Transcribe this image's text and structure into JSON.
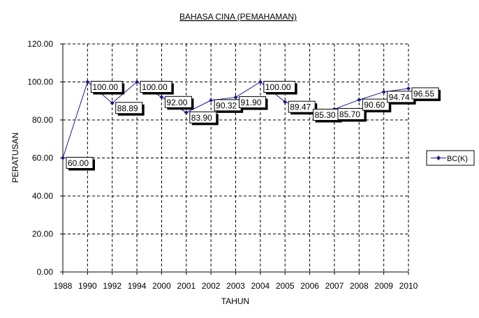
{
  "chart_data": {
    "type": "line",
    "title": "BAHASA CINA (PEMAHAMAN)",
    "xlabel": "TAHUN",
    "ylabel": "PERATUSAN",
    "categories": [
      "1988",
      "1990",
      "1992",
      "1994",
      "2000",
      "2001",
      "2002",
      "2003",
      "2004",
      "2005",
      "2006",
      "2007",
      "2008",
      "2009",
      "2010"
    ],
    "series": [
      {
        "name": "BC(K)",
        "color": "#1a1a8c",
        "values": [
          60.0,
          100.0,
          88.89,
          100.0,
          92.0,
          83.9,
          90.32,
          91.9,
          100.0,
          89.47,
          85.3,
          85.7,
          90.6,
          94.74,
          96.55
        ],
        "labels": [
          "60.00",
          "100.00",
          "88.89",
          "100.00",
          "92.00",
          "83.90",
          "90.32",
          "91.90",
          "100.00",
          "89.47",
          "85.30",
          "85.70",
          "90.60",
          "94.74",
          "96.55"
        ]
      }
    ],
    "y_ticks": [
      "0.00",
      "20.00",
      "40.00",
      "60.00",
      "80.00",
      "100.00",
      "120.00"
    ],
    "ylim": [
      0,
      120
    ],
    "grid": true,
    "legend_position": "right"
  }
}
